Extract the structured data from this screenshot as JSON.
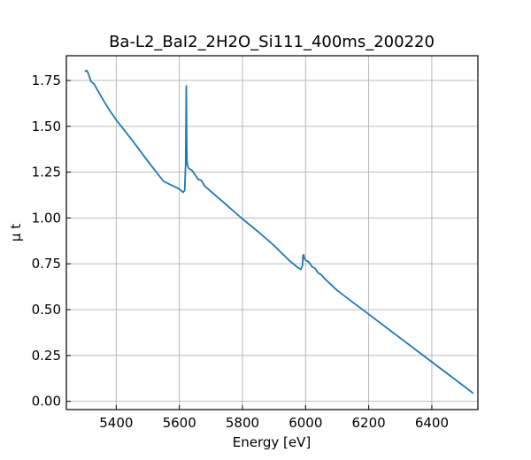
{
  "chart_data": {
    "type": "line",
    "title": "Ba-L2_BaI2_2H2O_Si111_400ms_200220",
    "xlabel": "Energy [eV]",
    "ylabel": "μ t",
    "xlim": [
      5242,
      6546
    ],
    "ylim": [
      -0.045,
      1.885
    ],
    "xticks": [
      5400,
      5600,
      5800,
      6000,
      6200,
      6400
    ],
    "yticks": [
      0.0,
      0.25,
      0.5,
      0.75,
      1.0,
      1.25,
      1.5,
      1.75
    ],
    "xtick_labels": [
      "5400",
      "5600",
      "5800",
      "6000",
      "6200",
      "6400"
    ],
    "ytick_labels": [
      "0.00",
      "0.25",
      "0.50",
      "0.75",
      "1.00",
      "1.25",
      "1.50",
      "1.75"
    ],
    "grid": true,
    "series": [
      {
        "color": "#1f77b4",
        "x": [
          5302,
          5306,
          5310,
          5315,
          5320,
          5330,
          5340,
          5350,
          5360,
          5380,
          5400,
          5450,
          5500,
          5550,
          5600,
          5612,
          5617,
          5620,
          5622,
          5623,
          5624,
          5626,
          5630,
          5640,
          5650,
          5660,
          5670,
          5680,
          5690,
          5700,
          5750,
          5800,
          5850,
          5900,
          5950,
          5975,
          5985,
          5990,
          5992,
          5994,
          5996,
          6000,
          6010,
          6020,
          6030,
          6040,
          6050,
          6060,
          6100,
          6150,
          6200,
          6250,
          6300,
          6350,
          6400,
          6450,
          6500,
          6530
        ],
        "y": [
          1.8,
          1.805,
          1.795,
          1.77,
          1.745,
          1.73,
          1.7,
          1.67,
          1.64,
          1.585,
          1.535,
          1.425,
          1.31,
          1.2,
          1.158,
          1.14,
          1.15,
          1.3,
          1.72,
          1.45,
          1.32,
          1.285,
          1.27,
          1.26,
          1.235,
          1.21,
          1.205,
          1.175,
          1.16,
          1.145,
          1.07,
          0.995,
          0.925,
          0.85,
          0.765,
          0.73,
          0.72,
          0.74,
          0.795,
          0.8,
          0.78,
          0.77,
          0.76,
          0.735,
          0.725,
          0.7,
          0.69,
          0.67,
          0.605,
          0.54,
          0.475,
          0.41,
          0.345,
          0.28,
          0.215,
          0.15,
          0.085,
          0.045
        ]
      }
    ]
  }
}
